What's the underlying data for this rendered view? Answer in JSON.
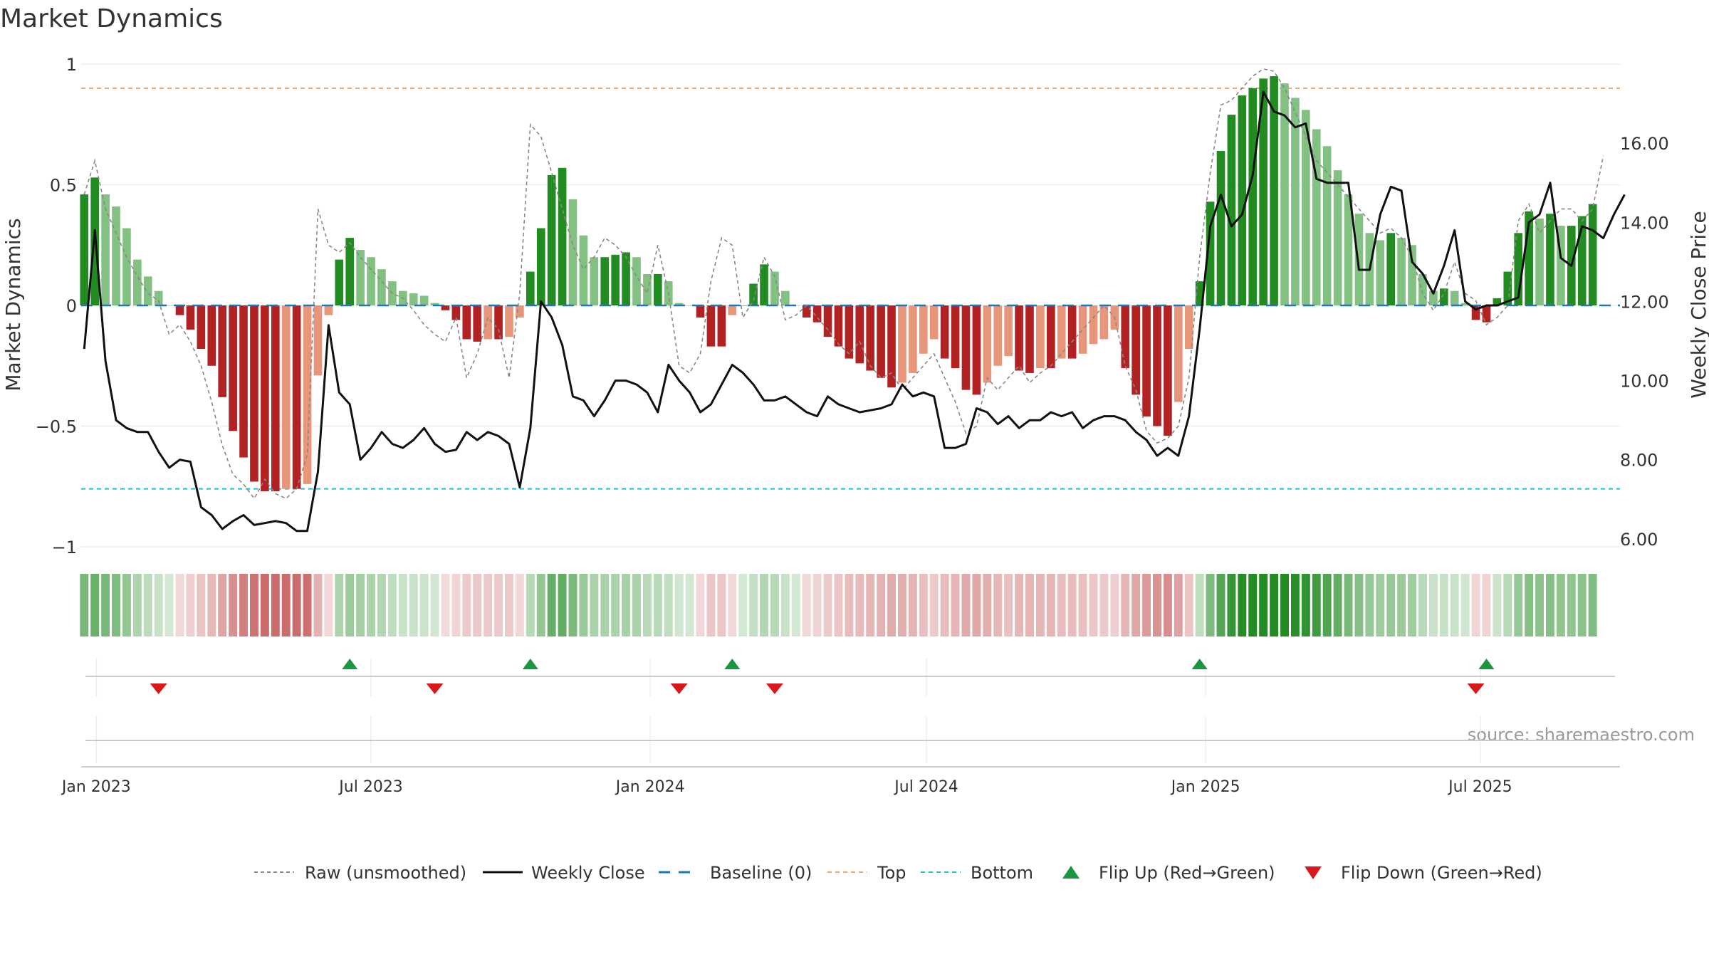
{
  "chart_data": {
    "type": "bar",
    "title": "Market Dynamics",
    "ylabel_left": "Market Dynamics",
    "ylabel_right": "Weekly Close Price",
    "left_ylim": [
      -1.0,
      1.0
    ],
    "left_ticks": [
      {
        "value": 1,
        "label": "1"
      },
      {
        "value": 0.5,
        "label": "0.5"
      },
      {
        "value": 0,
        "label": "0"
      },
      {
        "value": -0.5,
        "label": "−0.5"
      },
      {
        "value": -1,
        "label": "−1"
      }
    ],
    "right_ylim": [
      5.8,
      18.0
    ],
    "right_ticks": [
      {
        "value": 16,
        "label": "16.00"
      },
      {
        "value": 14,
        "label": "14.00"
      },
      {
        "value": 12,
        "label": "12.00"
      },
      {
        "value": 10,
        "label": "10.00"
      },
      {
        "value": 8,
        "label": "8.00"
      },
      {
        "value": 6,
        "label": "6.00"
      }
    ],
    "x_range": [
      "2022-12-22",
      "2025-10-01"
    ],
    "x_ticks": [
      {
        "date": "2023-01-01",
        "label": "Jan 2023"
      },
      {
        "date": "2023-07-01",
        "label": "Jul 2023"
      },
      {
        "date": "2024-01-01",
        "label": "Jan 2024"
      },
      {
        "date": "2024-07-01",
        "label": "Jul 2024"
      },
      {
        "date": "2025-01-01",
        "label": "Jan 2025"
      },
      {
        "date": "2025-07-01",
        "label": "Jul 2025"
      }
    ],
    "start_date": "2022-12-24",
    "bars": [
      0.46,
      0.53,
      0.46,
      0.41,
      0.32,
      0.19,
      0.12,
      0.06,
      0,
      -0.04,
      -0.1,
      -0.18,
      -0.25,
      -0.38,
      -0.52,
      -0.63,
      -0.73,
      -0.77,
      -0.77,
      -0.76,
      -0.76,
      -0.74,
      -0.29,
      -0.04,
      0.19,
      0.28,
      0.23,
      0.2,
      0.15,
      0.1,
      0.06,
      0.05,
      0.04,
      0.01,
      -0.02,
      -0.06,
      -0.14,
      -0.15,
      -0.14,
      -0.14,
      -0.13,
      -0.05,
      0.14,
      0.32,
      0.54,
      0.57,
      0.44,
      0.29,
      0.2,
      0.2,
      0.21,
      0.22,
      0.2,
      0.13,
      0.13,
      0.1,
      0.01,
      0,
      -0.05,
      -0.17,
      -0.17,
      -0.04,
      0,
      0.09,
      0.17,
      0.14,
      0.06,
      0,
      -0.05,
      -0.07,
      -0.13,
      -0.17,
      -0.22,
      -0.24,
      -0.27,
      -0.3,
      -0.34,
      -0.32,
      -0.28,
      -0.2,
      -0.14,
      -0.22,
      -0.26,
      -0.35,
      -0.37,
      -0.32,
      -0.25,
      -0.21,
      -0.27,
      -0.28,
      -0.26,
      -0.26,
      -0.22,
      -0.22,
      -0.2,
      -0.16,
      -0.14,
      -0.1,
      -0.26,
      -0.37,
      -0.46,
      -0.5,
      -0.54,
      -0.4,
      -0.18,
      0.1,
      0.43,
      0.64,
      0.79,
      0.87,
      0.9,
      0.94,
      0.95,
      0.92,
      0.86,
      0.81,
      0.73,
      0.66,
      0.56,
      0.46,
      0.38,
      0.3,
      0.27,
      0.3,
      0.28,
      0.25,
      0.13,
      0.06,
      0.07,
      0.06,
      0.01,
      -0.06,
      -0.07,
      0.03,
      0.14,
      0.3,
      0.39,
      0.36,
      0.38,
      0.33,
      0.33,
      0.37,
      0.42
    ],
    "raw": [
      0.46,
      0.6,
      0.4,
      0.3,
      0.2,
      0.12,
      0.05,
      0.02,
      -0.12,
      -0.08,
      -0.15,
      -0.25,
      -0.4,
      -0.58,
      -0.7,
      -0.74,
      -0.8,
      -0.72,
      -0.78,
      -0.8,
      -0.76,
      -0.62,
      0.4,
      0.25,
      0.22,
      0.26,
      0.2,
      0.15,
      0.1,
      0.05,
      0.03,
      -0.02,
      -0.08,
      -0.12,
      -0.15,
      -0.05,
      -0.3,
      -0.2,
      -0.05,
      -0.1,
      -0.3,
      0.05,
      0.75,
      0.7,
      0.55,
      0.4,
      0.25,
      0.15,
      0.2,
      0.28,
      0.25,
      0.2,
      0.12,
      0.05,
      0.25,
      0.05,
      -0.25,
      -0.28,
      -0.2,
      0.1,
      0.28,
      0.25,
      -0.05,
      0.02,
      0.2,
      0.12,
      -0.06,
      -0.04,
      0.0,
      -0.05,
      -0.1,
      -0.16,
      -0.2,
      -0.15,
      -0.25,
      -0.3,
      -0.28,
      -0.35,
      -0.3,
      -0.25,
      -0.2,
      -0.3,
      -0.4,
      -0.53,
      -0.5,
      -0.3,
      -0.35,
      -0.3,
      -0.25,
      -0.32,
      -0.28,
      -0.25,
      -0.2,
      -0.15,
      -0.1,
      -0.05,
      0.0,
      -0.05,
      -0.25,
      -0.35,
      -0.52,
      -0.57,
      -0.55,
      -0.5,
      -0.3,
      0.2,
      0.55,
      0.83,
      0.85,
      0.9,
      0.95,
      0.98,
      0.97,
      0.9,
      0.8,
      0.7,
      0.6,
      0.55,
      0.5,
      0.45,
      0.4,
      0.35,
      0.3,
      0.32,
      0.28,
      0.2,
      0.05,
      -0.02,
      0.05,
      0.18,
      0.05,
      0.02,
      -0.08,
      -0.05,
      0.0,
      0.35,
      0.42,
      0.3,
      0.35,
      0.4,
      0.4,
      0.35,
      0.4,
      0.62
    ],
    "close": [
      10.8,
      13.8,
      10.5,
      9.0,
      8.8,
      8.7,
      8.7,
      8.2,
      7.8,
      8.0,
      7.95,
      6.8,
      6.6,
      6.25,
      6.45,
      6.6,
      6.35,
      6.4,
      6.45,
      6.4,
      6.2,
      6.2,
      7.7,
      11.4,
      9.7,
      9.4,
      8.0,
      8.3,
      8.7,
      8.4,
      8.3,
      8.5,
      8.8,
      8.4,
      8.2,
      8.25,
      8.7,
      8.5,
      8.7,
      8.6,
      8.4,
      7.3,
      8.8,
      12.0,
      11.6,
      10.9,
      9.6,
      9.5,
      9.1,
      9.5,
      10.0,
      10.0,
      9.9,
      9.7,
      9.2,
      10.4,
      10.0,
      9.7,
      9.2,
      9.4,
      9.9,
      10.4,
      10.2,
      9.9,
      9.5,
      9.5,
      9.6,
      9.4,
      9.2,
      9.1,
      9.6,
      9.4,
      9.3,
      9.2,
      9.25,
      9.3,
      9.4,
      9.9,
      9.6,
      9.7,
      9.6,
      8.3,
      8.3,
      8.4,
      9.3,
      9.2,
      8.9,
      9.1,
      8.8,
      9.0,
      9.0,
      9.2,
      9.1,
      9.2,
      8.8,
      9.0,
      9.1,
      9.1,
      9.0,
      8.7,
      8.5,
      8.1,
      8.3,
      8.1,
      9.1,
      11.3,
      13.9,
      14.7,
      13.9,
      14.2,
      15.2,
      17.3,
      16.8,
      16.7,
      16.4,
      16.5,
      15.1,
      15.0,
      15.0,
      15.0,
      12.8,
      12.8,
      14.2,
      14.9,
      14.8,
      13.0,
      12.7,
      12.2,
      12.9,
      13.8,
      12.0,
      11.8,
      11.9,
      11.9,
      12.0,
      12.1,
      14.0,
      14.2,
      15.0,
      13.1,
      12.9,
      13.9,
      13.8,
      13.6,
      14.2,
      14.7
    ],
    "thresholds": {
      "top": 0.9,
      "bottom": -0.76,
      "baseline": 0
    },
    "flip_up": [
      "2023-06-17",
      "2023-10-14",
      "2024-02-24",
      "2024-12-28",
      "2025-07-05"
    ],
    "flip_down": [
      "2023-02-11",
      "2023-08-12",
      "2024-01-20",
      "2024-03-23",
      "2025-06-28"
    ],
    "legend": [
      {
        "key": "raw",
        "label": "Raw (unsmoothed)"
      },
      {
        "key": "close",
        "label": "Weekly Close"
      },
      {
        "key": "baseline",
        "label": "Baseline (0)"
      },
      {
        "key": "top",
        "label": "Top"
      },
      {
        "key": "bottom",
        "label": "Bottom"
      },
      {
        "key": "flip_up",
        "label": "Flip Up (Red→Green)"
      },
      {
        "key": "flip_down",
        "label": "Flip Down (Green→Red)"
      }
    ],
    "legend_position": "bottom-center",
    "source": "source: sharemaestro.com",
    "grid": true
  },
  "colors": {
    "green_strong": "#228b22",
    "green_light": "#82c182",
    "red_strong": "#b22222",
    "red_light": "#e8967a",
    "close_line": "#111111",
    "raw_line": "#888888",
    "baseline": "#1f77b4",
    "top": "#f4a460",
    "bottom": "#20c0d0",
    "flip_up": "#1a9641",
    "flip_down": "#d7191c"
  }
}
